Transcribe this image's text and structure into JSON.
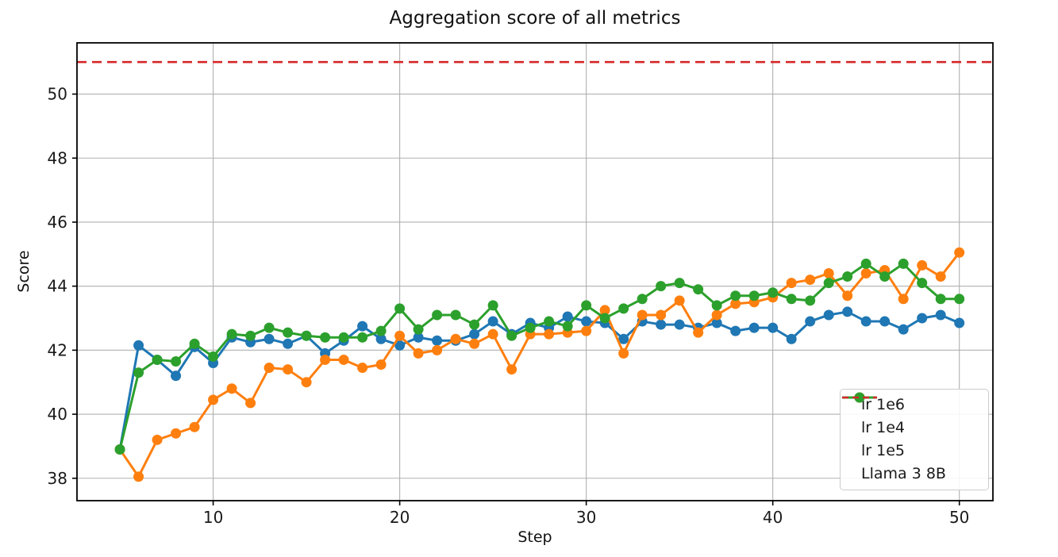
{
  "figure": {
    "title": "Aggregation score of all metrics",
    "background": "#ffffff"
  },
  "chart_data": {
    "type": "line",
    "title": "Aggregation score of all metrics",
    "xlabel": "Step",
    "ylabel": "Score",
    "grid": true,
    "legend_position": "lower right",
    "xticks": [
      10,
      20,
      30,
      40,
      50
    ],
    "yticks": [
      38,
      40,
      42,
      44,
      46,
      48,
      50
    ],
    "xlim": [
      2.7,
      51.8
    ],
    "ylim": [
      37.3,
      51.6
    ],
    "x": [
      5,
      6,
      7,
      8,
      9,
      10,
      11,
      12,
      13,
      14,
      15,
      16,
      17,
      18,
      19,
      20,
      21,
      22,
      23,
      24,
      25,
      26,
      27,
      28,
      29,
      30,
      31,
      32,
      33,
      34,
      35,
      36,
      37,
      38,
      39,
      40,
      41,
      42,
      43,
      44,
      45,
      46,
      47,
      48,
      49,
      50
    ],
    "series": [
      {
        "name": "lr 1e6",
        "color": "#1f77b4",
        "marker": "circle",
        "values": [
          38.9,
          42.15,
          41.7,
          41.2,
          42.1,
          41.6,
          42.4,
          42.25,
          42.35,
          42.2,
          42.45,
          41.9,
          42.3,
          42.75,
          42.35,
          42.15,
          42.4,
          42.3,
          42.3,
          42.5,
          42.9,
          42.5,
          42.85,
          42.7,
          43.05,
          42.9,
          42.85,
          42.35,
          42.9,
          42.8,
          42.8,
          42.7,
          42.85,
          42.6,
          42.7,
          42.7,
          42.35,
          42.9,
          43.1,
          43.2,
          42.9,
          42.9,
          42.65,
          43.0,
          43.1,
          42.85
        ]
      },
      {
        "name": "lr 1e4",
        "color": "#ff7f0e",
        "marker": "circle",
        "values": [
          38.9,
          38.05,
          39.2,
          39.4,
          39.6,
          40.45,
          40.8,
          40.35,
          41.45,
          41.4,
          41.0,
          41.7,
          41.7,
          41.45,
          41.55,
          42.45,
          41.9,
          42.0,
          42.35,
          42.2,
          42.5,
          41.4,
          42.5,
          42.5,
          42.55,
          42.6,
          43.25,
          41.9,
          43.1,
          43.1,
          43.55,
          42.55,
          43.1,
          43.45,
          43.5,
          43.65,
          44.1,
          44.2,
          44.4,
          43.7,
          44.4,
          44.5,
          43.6,
          44.65,
          44.3,
          45.05
        ]
      },
      {
        "name": "lr 1e5",
        "color": "#2ca02c",
        "marker": "circle",
        "values": [
          38.9,
          41.3,
          41.7,
          41.65,
          42.2,
          41.8,
          42.5,
          42.45,
          42.7,
          42.55,
          42.45,
          42.4,
          42.4,
          42.4,
          42.6,
          43.3,
          42.65,
          43.1,
          43.1,
          42.8,
          43.4,
          42.45,
          42.7,
          42.9,
          42.75,
          43.4,
          43.0,
          43.3,
          43.6,
          44.0,
          44.1,
          43.9,
          43.4,
          43.7,
          43.7,
          43.8,
          43.6,
          43.55,
          44.1,
          44.3,
          44.7,
          44.3,
          44.7,
          44.1,
          43.6,
          43.6
        ]
      }
    ],
    "reference_line": {
      "name": "Llama 3 8B",
      "value": 51.0,
      "color": "#d62728",
      "style": "dashed"
    },
    "legend": [
      "lr 1e6",
      "lr 1e4",
      "lr 1e5",
      "Llama 3 8B"
    ]
  },
  "colors": {
    "grid": "#b0b0b0",
    "spine": "#000000",
    "tick_text": "#1a1a1a"
  }
}
